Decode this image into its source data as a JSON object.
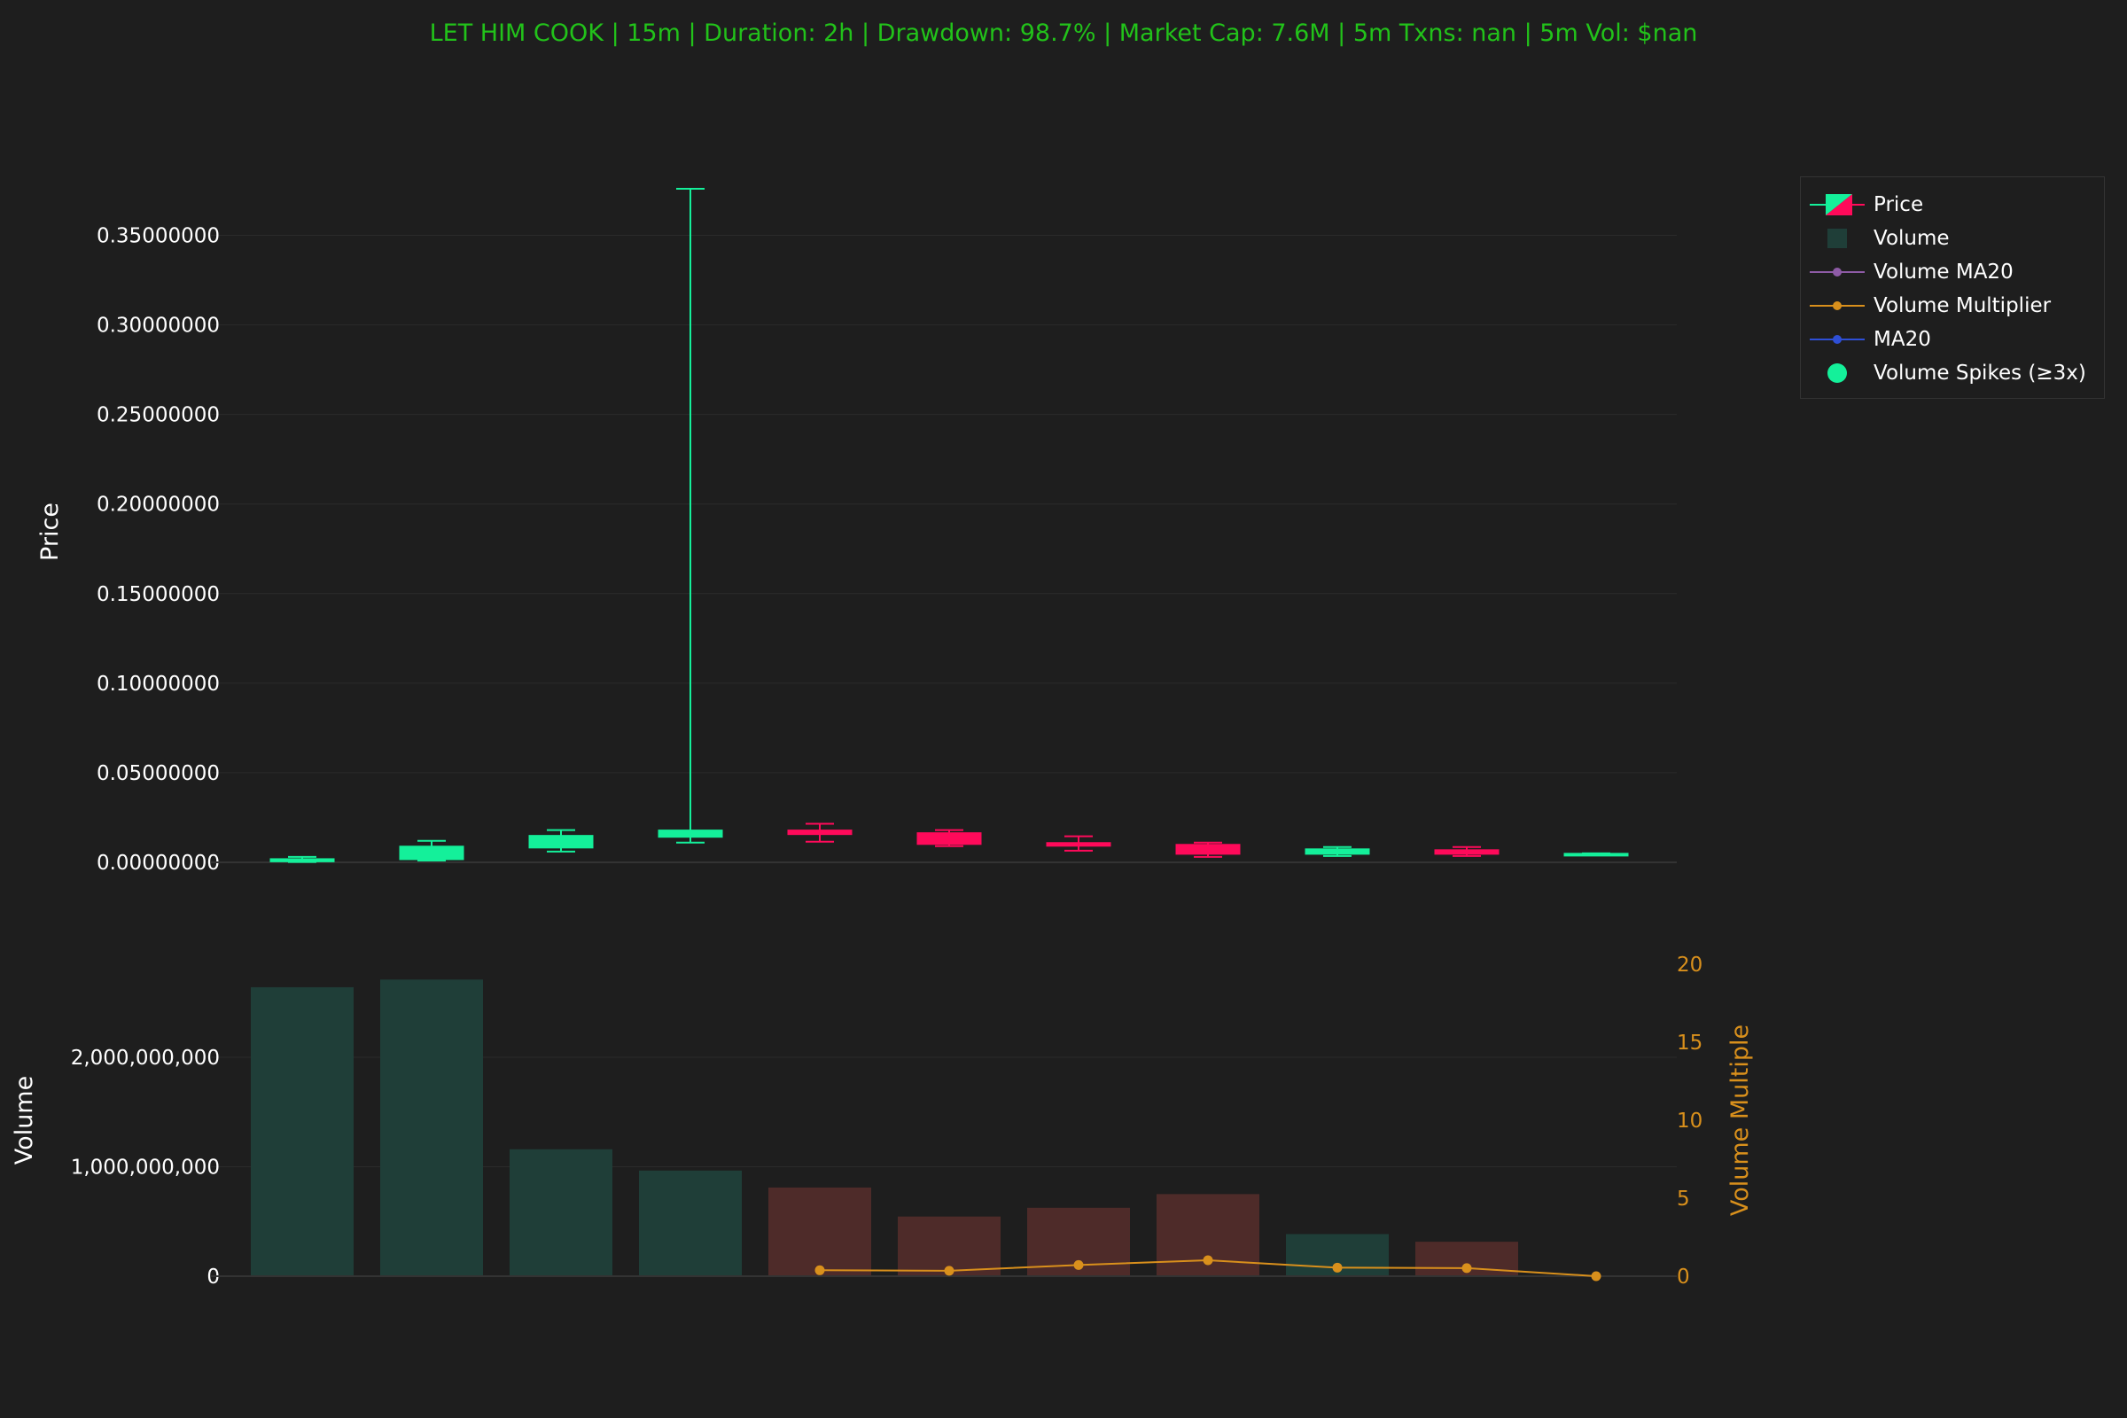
{
  "title": "LET HIM COOK | 15m | Duration: 2h | Drawdown: 98.7% | Market Cap: 7.6M | 5m Txns: nan | 5m Vol: $nan",
  "colors": {
    "background": "#1e1e1e",
    "title": "#22c21a",
    "up": "#14f09a",
    "down": "#ff0a5a",
    "volume_up": "#1f3e38",
    "volume_down": "#4e2b29",
    "multiplier": "#d9901c",
    "ma20_volume": "#8e5ba6",
    "ma20": "#2e4fd6",
    "grid": "#2b2b2b",
    "axis_text": "#ffffff"
  },
  "legend": [
    {
      "label": "Price",
      "icon": "candlestick-icon"
    },
    {
      "label": "Volume",
      "icon": "bar-swatch-icon"
    },
    {
      "label": "Volume MA20",
      "icon": "line-marker-icon",
      "color": "#8e5ba6"
    },
    {
      "label": "Volume Multiplier",
      "icon": "line-marker-icon",
      "color": "#d9901c"
    },
    {
      "label": "MA20",
      "icon": "line-marker-icon",
      "color": "#2e4fd6"
    },
    {
      "label": "Volume Spikes (≥3x)",
      "icon": "circle-icon",
      "color": "#14f09a"
    }
  ],
  "chart_data": [
    {
      "type": "candlestick",
      "ylabel": "Price",
      "ylim": [
        -0.001,
        0.375
      ],
      "y_ticks": [
        "0.00000000",
        "0.05000000",
        "0.10000000",
        "0.15000000",
        "0.20000000",
        "0.25000000",
        "0.30000000",
        "0.35000000"
      ],
      "y_tick_values": [
        0,
        0.05,
        0.1,
        0.15,
        0.2,
        0.25,
        0.3,
        0.35
      ],
      "grid": true,
      "candles": [
        {
          "open": 0.0003,
          "high": 0.003,
          "low": 0.0002,
          "close": 0.002
        },
        {
          "open": 0.0015,
          "high": 0.012,
          "low": 0.001,
          "close": 0.009
        },
        {
          "open": 0.008,
          "high": 0.018,
          "low": 0.006,
          "close": 0.015
        },
        {
          "open": 0.014,
          "high": 0.376,
          "low": 0.011,
          "close": 0.018
        },
        {
          "open": 0.018,
          "high": 0.0215,
          "low": 0.0115,
          "close": 0.0155
        },
        {
          "open": 0.0165,
          "high": 0.018,
          "low": 0.009,
          "close": 0.01
        },
        {
          "open": 0.011,
          "high": 0.0145,
          "low": 0.0065,
          "close": 0.009
        },
        {
          "open": 0.01,
          "high": 0.011,
          "low": 0.003,
          "close": 0.0045
        },
        {
          "open": 0.0045,
          "high": 0.0085,
          "low": 0.0035,
          "close": 0.0075
        },
        {
          "open": 0.007,
          "high": 0.0085,
          "low": 0.0035,
          "close": 0.0045
        },
        {
          "open": 0.0045,
          "high": 0.005,
          "low": 0.0045,
          "close": 0.005
        }
      ]
    },
    {
      "type": "bar",
      "ylabel": "Volume",
      "ylim": [
        0,
        2850000000
      ],
      "y_ticks": [
        "0",
        "1,000,000,000",
        "2,000,000,000"
      ],
      "y_tick_values": [
        0,
        1000000000,
        2000000000
      ],
      "grid": true,
      "values": [
        2640000000,
        2710000000,
        1160000000,
        965000000,
        810000000,
        545000000,
        625000000,
        750000000,
        385000000,
        315000000,
        0
      ],
      "direction": [
        "up",
        "up",
        "up",
        "up",
        "down",
        "down",
        "down",
        "down",
        "up",
        "down",
        "up"
      ]
    },
    {
      "type": "line",
      "series": [
        {
          "name": "Volume Multiplier",
          "values": [
            null,
            null,
            null,
            null,
            0.38,
            0.35,
            0.72,
            1.02,
            0.55,
            0.52,
            0
          ]
        }
      ],
      "ylabel": "Volume Multiple",
      "ylim": [
        0,
        20
      ],
      "y_ticks": [
        "0",
        "5",
        "10",
        "15",
        "20"
      ],
      "y_tick_values": [
        0,
        5,
        10,
        15,
        20
      ]
    }
  ]
}
